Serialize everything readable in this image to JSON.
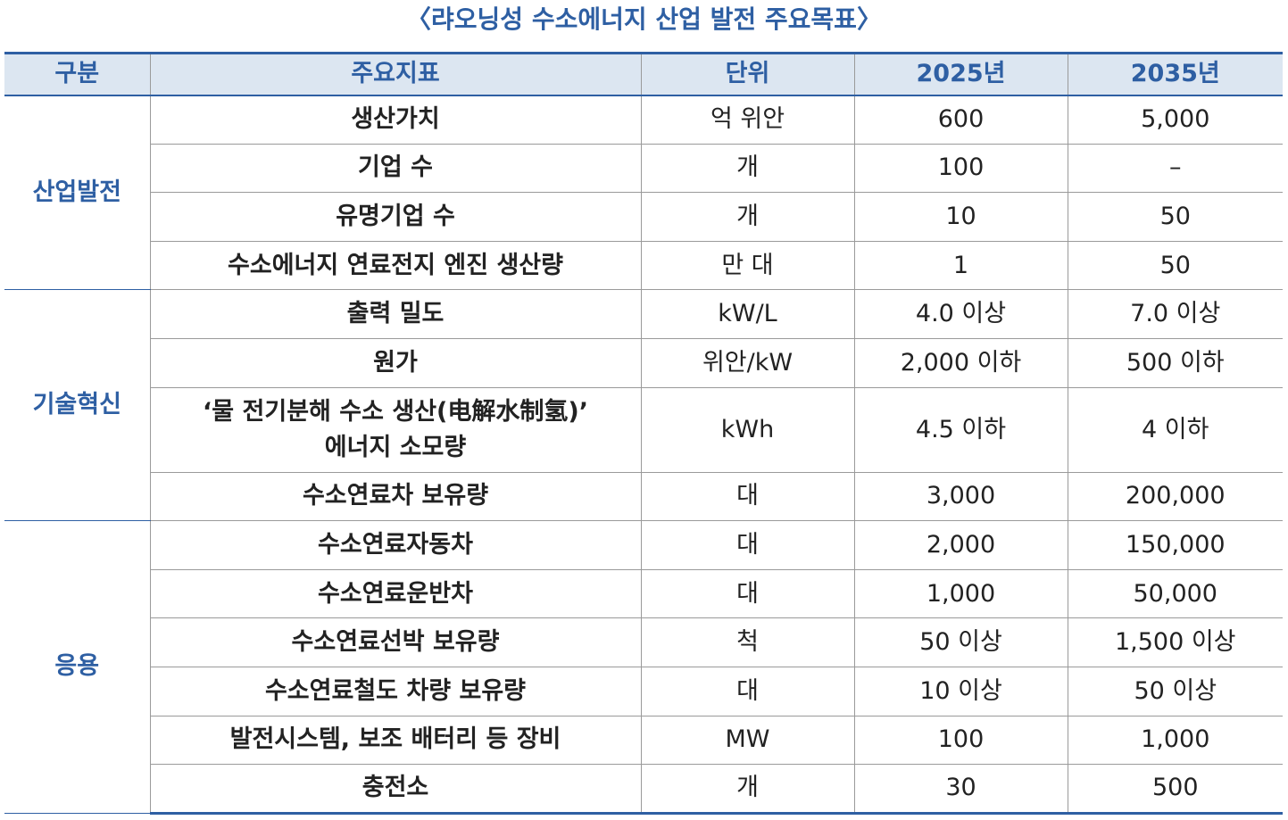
{
  "title": "〈랴오닝성 수소에너지 산업 발전 주요목표〉",
  "table": {
    "header": [
      "구분",
      "주요지표",
      "단위",
      "2025년",
      "2035년"
    ],
    "groups": [
      {
        "label": "산업발전",
        "rows": [
          [
            "생산가치",
            "억 위안",
            "600",
            "5,000"
          ],
          [
            "기업 수",
            "개",
            "100",
            "–"
          ],
          [
            "유명기업 수",
            "개",
            "10",
            "50"
          ],
          [
            "수소에너지 연료전지 엔진 생산량",
            "만 대",
            "1",
            "50"
          ]
        ]
      },
      {
        "label": "기술혁신",
        "rows": [
          [
            "출력 밀도",
            "kW/L",
            "4.0 이상",
            "7.0 이상"
          ],
          [
            "원가",
            "위안/kW",
            "2,000 이하",
            "500 이하"
          ],
          [
            "‘물 전기분해 수소 생산(电解水制氢)’\n에너지 소모량",
            "kWh",
            "4.5 이하",
            "4 이하"
          ],
          [
            "수소연료차 보유량",
            "대",
            "3,000",
            "200,000"
          ]
        ]
      },
      {
        "label": "응용",
        "rows": [
          [
            "수소연료자동차",
            "대",
            "2,000",
            "150,000"
          ],
          [
            "수소연료운반차",
            "대",
            "1,000",
            "50,000"
          ],
          [
            "수소연료선박 보유량",
            "척",
            "50 이상",
            "1,500 이상"
          ],
          [
            "수소연료철도 차량 보유량",
            "대",
            "10 이상",
            "50 이상"
          ],
          [
            "발전시스템, 보조 배터리 등 장비",
            "MW",
            "100",
            "1,000"
          ],
          [
            "충전소",
            "개",
            "30",
            "500"
          ]
        ]
      }
    ]
  }
}
